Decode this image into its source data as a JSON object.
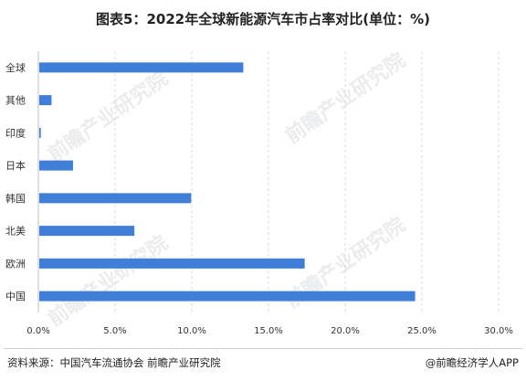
{
  "title": "图表5：2022年全球新能源汽车市占率对比(单位：%)",
  "watermark": "前瞻产业研究院",
  "footer": {
    "source": "资料来源：中国汽车流通协会 前瞻产业研究院",
    "brand": "@前瞻经济学人APP"
  },
  "colors": {
    "bar": "#3f7fd9",
    "grid": "#d9d9d9",
    "axis": "#bfbfbf"
  },
  "chart_data": {
    "type": "bar",
    "orientation": "horizontal",
    "categories": [
      "全球",
      "其他",
      "印度",
      "日本",
      "韩国",
      "北美",
      "欧洲",
      "中国"
    ],
    "values": [
      13.3,
      0.8,
      0.1,
      2.2,
      9.9,
      6.2,
      17.3,
      24.5
    ],
    "xlim": [
      0,
      30
    ],
    "xticks": [
      "0.0%",
      "5.0%",
      "10.0%",
      "15.0%",
      "20.0%",
      "25.0%",
      "30.0%"
    ],
    "grid": true
  }
}
